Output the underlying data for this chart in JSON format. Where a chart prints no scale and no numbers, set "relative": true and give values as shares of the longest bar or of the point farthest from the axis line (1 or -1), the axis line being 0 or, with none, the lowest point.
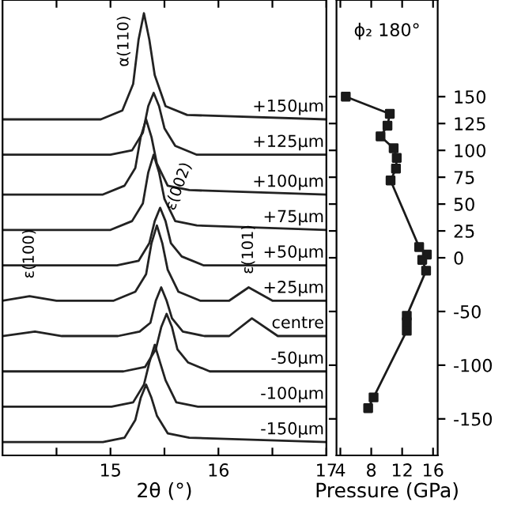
{
  "chart_data": [
    {
      "type": "line",
      "relative": true,
      "xlabel": "2θ (°)",
      "xlim": [
        14,
        17
      ],
      "xticks": [
        {
          "value": 14.5,
          "label": null
        },
        15,
        {
          "value": 15.5,
          "label": null
        },
        16,
        {
          "value": 16.5,
          "label": null
        },
        17
      ],
      "tick_labels": "x",
      "annotations": [
        {
          "text": "α(110)",
          "x": 15.31,
          "y": 1.0
        },
        {
          "text": "ε(100)",
          "x": 14.25,
          "y": 0.36
        },
        {
          "text": "ε(002)",
          "x": 15.43,
          "y": 0.52
        },
        {
          "text": "ε(101)",
          "x": 16.28,
          "y": 0.38
        }
      ],
      "series": [
        {
          "name": "+150µm",
          "color": "#222222",
          "x": [
            14.0,
            14.91,
            15.11,
            15.21,
            15.26,
            15.31,
            15.36,
            15.41,
            15.51,
            15.71,
            17.0
          ],
          "values": [
            0.76,
            0.76,
            0.78,
            0.84,
            0.94,
            1.0,
            0.94,
            0.86,
            0.79,
            0.77,
            0.76
          ]
        },
        {
          "name": "+125µm",
          "color": "#222222",
          "x": [
            14.0,
            15.0,
            15.2,
            15.3,
            15.35,
            15.4,
            15.45,
            15.5,
            15.6,
            15.8,
            17.0
          ],
          "values": [
            0.68,
            0.68,
            0.69,
            0.73,
            0.79,
            0.82,
            0.79,
            0.74,
            0.7,
            0.68,
            0.68
          ]
        },
        {
          "name": "+100µm",
          "color": "#222222",
          "x": [
            14.0,
            14.93,
            15.13,
            15.23,
            15.28,
            15.33,
            15.38,
            15.43,
            15.53,
            15.73,
            17.0
          ],
          "values": [
            0.59,
            0.59,
            0.61,
            0.65,
            0.72,
            0.76,
            0.72,
            0.66,
            0.61,
            0.6,
            0.59
          ]
        },
        {
          "name": "+75µm",
          "color": "#222222",
          "x": [
            14.0,
            15.0,
            15.2,
            15.3,
            15.35,
            15.4,
            15.45,
            15.5,
            15.6,
            15.8,
            17.0
          ],
          "values": [
            0.51,
            0.51,
            0.53,
            0.57,
            0.64,
            0.68,
            0.64,
            0.58,
            0.53,
            0.52,
            0.51
          ]
        },
        {
          "name": "+50µm",
          "color": "#222222",
          "x": [
            14.0,
            15.06,
            15.26,
            15.36,
            15.41,
            15.46,
            15.51,
            15.56,
            15.66,
            15.86,
            17.0
          ],
          "values": [
            0.43,
            0.43,
            0.44,
            0.48,
            0.53,
            0.56,
            0.53,
            0.48,
            0.45,
            0.43,
            0.43
          ]
        },
        {
          "name": "+25µm",
          "color": "#222222",
          "x": [
            14.0,
            14.25,
            14.5,
            15.03,
            15.23,
            15.33,
            15.38,
            15.43,
            15.48,
            15.53,
            15.63,
            15.83,
            16.1,
            16.28,
            16.5,
            17.0
          ],
          "values": [
            0.35,
            0.36,
            0.35,
            0.35,
            0.37,
            0.41,
            0.48,
            0.52,
            0.48,
            0.42,
            0.37,
            0.35,
            0.35,
            0.38,
            0.35,
            0.35
          ]
        },
        {
          "name": "centre",
          "color": "#222222",
          "x": [
            14.0,
            14.3,
            14.55,
            15.07,
            15.27,
            15.37,
            15.42,
            15.47,
            15.52,
            15.57,
            15.67,
            15.87,
            16.1,
            16.31,
            16.55,
            17.0
          ],
          "values": [
            0.27,
            0.28,
            0.27,
            0.27,
            0.28,
            0.3,
            0.35,
            0.38,
            0.35,
            0.31,
            0.28,
            0.27,
            0.27,
            0.31,
            0.27,
            0.27
          ]
        },
        {
          "name": "-50µm",
          "color": "#222222",
          "x": [
            14.0,
            15.12,
            15.32,
            15.42,
            15.47,
            15.52,
            15.57,
            15.62,
            15.72,
            15.92,
            17.0
          ],
          "values": [
            0.19,
            0.19,
            0.2,
            0.24,
            0.29,
            0.32,
            0.29,
            0.24,
            0.21,
            0.19,
            0.19
          ]
        },
        {
          "name": "-100µm",
          "color": "#222222",
          "x": [
            14.0,
            15.01,
            15.21,
            15.31,
            15.36,
            15.41,
            15.46,
            15.51,
            15.61,
            15.81,
            17.0
          ],
          "values": [
            0.11,
            0.11,
            0.12,
            0.16,
            0.21,
            0.25,
            0.21,
            0.17,
            0.12,
            0.11,
            0.11
          ]
        },
        {
          "name": "-150µm",
          "color": "#222222",
          "x": [
            14.0,
            14.93,
            15.13,
            15.23,
            15.28,
            15.33,
            15.38,
            15.43,
            15.53,
            15.73,
            17.0
          ],
          "values": [
            0.03,
            0.03,
            0.04,
            0.08,
            0.13,
            0.16,
            0.13,
            0.09,
            0.05,
            0.04,
            0.03
          ]
        }
      ]
    },
    {
      "type": "line",
      "marker": "square",
      "xlabel": "Pressure (GPa)",
      "xlim": [
        3.5,
        16.6
      ],
      "xticks": [
        4,
        8,
        12,
        16
      ],
      "ylim": [
        -184,
        240
      ],
      "yticks": [
        150,
        125,
        100,
        75,
        50,
        25,
        0,
        -50,
        -100,
        -150
      ],
      "annotations": [
        "ϕ₂ 180°"
      ],
      "series": [
        {
          "color": "#1a1a1a",
          "x": [
            4.7,
            10.4,
            10.1,
            9.2,
            10.9,
            11.3,
            11.2,
            10.5,
            14.2,
            15.2,
            14.6,
            15.1,
            12.6,
            12.6,
            12.6,
            8.3,
            7.6
          ],
          "values": [
            150,
            134,
            123,
            113,
            102,
            93,
            83,
            72,
            10,
            3,
            -2,
            -12,
            -54,
            -60,
            -68,
            -130,
            -140
          ]
        }
      ]
    }
  ]
}
